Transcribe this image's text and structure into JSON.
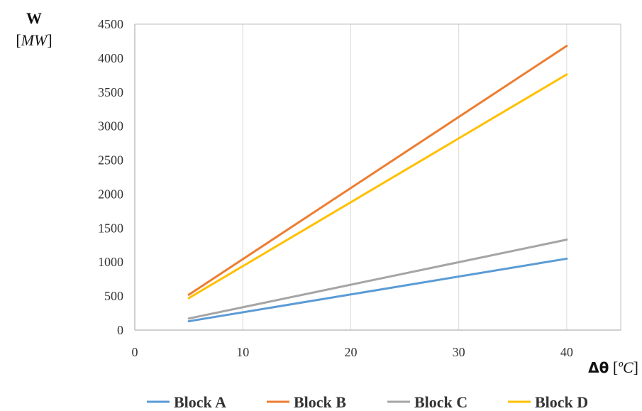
{
  "chart_data": {
    "type": "line",
    "y_label_symbol": "W",
    "y_label_unit_open": "[",
    "y_label_unit": "MW",
    "y_label_unit_close": "]",
    "x_label_symbol": "Δθ",
    "x_label_unit_open": "[",
    "x_label_unit": "ºC",
    "x_label_unit_close": "]",
    "xlim": [
      0,
      45
    ],
    "ylim": [
      0,
      4500
    ],
    "x_ticks": [
      0,
      10,
      20,
      30,
      40
    ],
    "y_ticks": [
      0,
      500,
      1000,
      1500,
      2000,
      2500,
      3000,
      3500,
      4000,
      4500
    ],
    "grid": "vertical",
    "legend_position": "bottom",
    "series": [
      {
        "name": "Block A",
        "color": "#5b9bd5",
        "x": [
          5,
          40
        ],
        "y": [
          130,
          1050
        ]
      },
      {
        "name": "Block B",
        "color": "#ed7d31",
        "x": [
          5,
          40
        ],
        "y": [
          520,
          4180
        ]
      },
      {
        "name": "Block C",
        "color": "#a5a5a5",
        "x": [
          5,
          40
        ],
        "y": [
          170,
          1330
        ]
      },
      {
        "name": "Block D",
        "color": "#ffc000",
        "x": [
          5,
          40
        ],
        "y": [
          470,
          3760
        ]
      }
    ]
  }
}
